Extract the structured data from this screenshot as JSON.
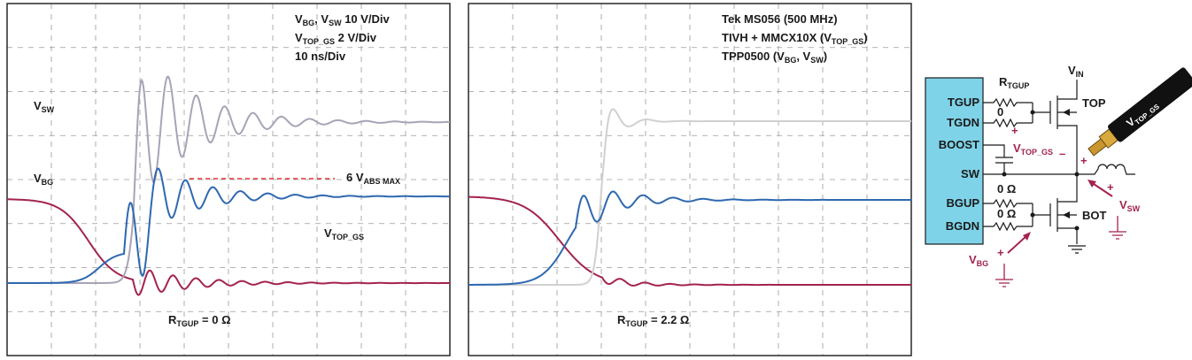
{
  "colors": {
    "vsw": "#a8a3b6",
    "vtop_gs": "#2e68b0",
    "vbg": "#a3234f",
    "vsw_right": "#d0d0d0",
    "abs_max_line": "#e03030",
    "ic_fill": "#7fd3e8",
    "probe_tip": "#c9962e"
  },
  "left_scope": {
    "settings": [
      {
        "main": "V",
        "sub": "BG",
        "mid": ", V",
        "sub2": "SW",
        "tail": " 10 V/Div"
      },
      {
        "main": "V",
        "sub": "TOP_GS",
        "tail": " 2 V/Div"
      },
      {
        "main": "10 ns/Div"
      }
    ],
    "label_vsw": {
      "main": "V",
      "sub": "SW"
    },
    "label_vbg": {
      "main": "V",
      "sub": "BG"
    },
    "label_vtop_gs": {
      "main": "V",
      "sub": "TOP_GS"
    },
    "abs_max_label": {
      "pre": "6 V",
      "sub": "ABS MAX"
    },
    "rtgup_label": {
      "main": "R",
      "sub": "TGUP",
      "tail": " = 0 Ω"
    }
  },
  "right_scope": {
    "settings": [
      {
        "main": "Tek MS056 (500 MHz)"
      },
      {
        "main": "TIVH + MMCX10X (V",
        "sub": "TOP_GS",
        "tail": ")"
      },
      {
        "main": "TPP0500 (V",
        "sub": "BG",
        "mid": ", V",
        "sub2": "SW",
        "tail": ")"
      }
    ],
    "rtgup_label": {
      "main": "R",
      "sub": "TGUP",
      "tail": " = 2.2 Ω"
    }
  },
  "schematic": {
    "pins": [
      "TGUP",
      "TGDN",
      "BOOST",
      "SW",
      "BGUP",
      "BGDN"
    ],
    "rtgup": {
      "main": "R",
      "sub": "TGUP"
    },
    "zero_ohm_a": "0 Ω",
    "zero_ohm_b": "0 Ω",
    "zero_top": "0",
    "vin": {
      "main": "V",
      "sub": "IN"
    },
    "top_fet": "TOP",
    "bot_fet": "BOT",
    "vtop_gs": {
      "main": "V",
      "sub": "TOP_GS"
    },
    "vsw": {
      "main": "V",
      "sub": "SW"
    },
    "vbg": {
      "main": "V",
      "sub": "BG"
    },
    "probe": {
      "main": "V",
      "sub": "TOP_GS"
    },
    "plus": "+",
    "minus": "–"
  },
  "chart_data": [
    {
      "type": "line",
      "grid": true,
      "divisions": {
        "x": 10,
        "y": 8
      },
      "x_units": "ns",
      "x_per_div": 10,
      "annotations": [
        "6 V ABS MAX"
      ],
      "series": [
        {
          "name": "VSW",
          "volts_per_div": 10
        },
        {
          "name": "VTOP_GS",
          "volts_per_div": 2
        },
        {
          "name": "VBG",
          "volts_per_div": 10
        }
      ],
      "condition": "RTGUP = 0 Ω"
    },
    {
      "type": "line",
      "grid": true,
      "divisions": {
        "x": 10,
        "y": 8
      },
      "x_units": "ns",
      "x_per_div": 10,
      "series": [
        {
          "name": "VSW",
          "volts_per_div": 10
        },
        {
          "name": "VTOP_GS",
          "volts_per_div": 2
        },
        {
          "name": "VBG",
          "volts_per_div": 10
        }
      ],
      "condition": "RTGUP = 2.2 Ω"
    }
  ]
}
